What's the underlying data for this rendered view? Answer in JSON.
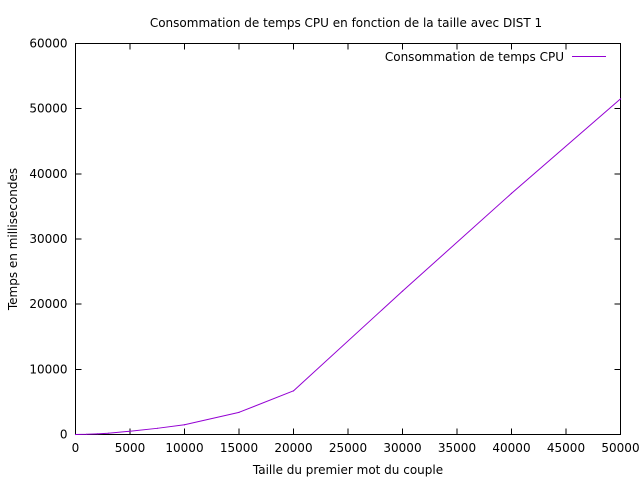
{
  "chart_data": {
    "type": "line",
    "title": "Consommation de temps CPU en fonction de la taille avec DIST 1",
    "xlabel": "Taille du premier mot du couple",
    "ylabel": "Temps en millisecondes",
    "xlim": [
      0,
      50000
    ],
    "ylim": [
      0,
      60000
    ],
    "xticks": [
      0,
      5000,
      10000,
      15000,
      20000,
      25000,
      30000,
      35000,
      40000,
      45000,
      50000
    ],
    "yticks": [
      0,
      10000,
      20000,
      30000,
      40000,
      50000,
      60000
    ],
    "grid": false,
    "legend": "top-right",
    "series": [
      {
        "name": "Consommation de temps CPU",
        "color": "#9400d3",
        "x": [
          0,
          1000,
          2000,
          3000,
          5000,
          7500,
          10000,
          15000,
          20000,
          30000,
          40000,
          50000
        ],
        "y": [
          0,
          30,
          100,
          200,
          500,
          950,
          1500,
          3400,
          6700,
          22000,
          37000,
          51500
        ]
      }
    ]
  }
}
